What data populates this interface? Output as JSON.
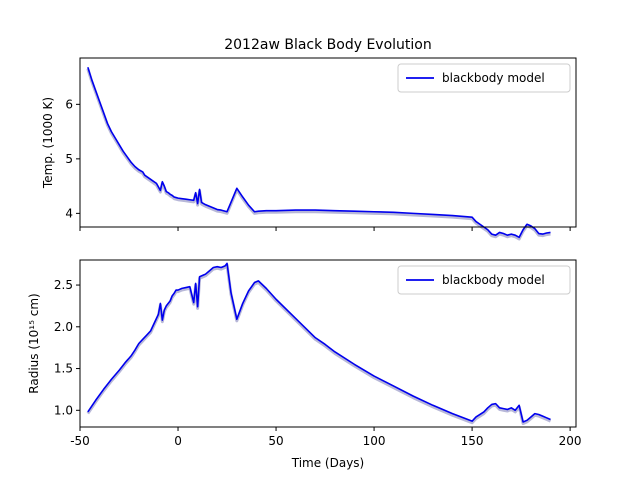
{
  "chart_data": {
    "type": "line",
    "title": "2012aw Black Body Evolution",
    "xlabel": "Time (Days)",
    "xlim": [
      -50,
      203
    ],
    "xticks": [
      -50,
      0,
      50,
      100,
      150,
      200
    ],
    "subplots": [
      {
        "id": "temperature",
        "ylabel": "Temp. (1000 K)",
        "ylim": [
          3.75,
          6.85
        ],
        "yticks": [
          4,
          5,
          6
        ],
        "legend": {
          "position": "top-right",
          "label": "blackbody model"
        },
        "series": [
          {
            "name": "blackbody model",
            "color": "#0000ee",
            "x": [
              -46,
              -44,
              -42,
              -40,
              -38,
              -36,
              -34,
              -32,
              -30,
              -28,
              -26,
              -24,
              -22,
              -20,
              -18,
              -17,
              -15,
              -13,
              -11,
              -9,
              -8,
              -7,
              -6,
              -5,
              -4,
              -3,
              -2,
              -1,
              0,
              2,
              4,
              6,
              8,
              9,
              10,
              11,
              12,
              13,
              14,
              16,
              18,
              20,
              22,
              25,
              27,
              30,
              33,
              36,
              39,
              41,
              45,
              50,
              60,
              70,
              80,
              90,
              100,
              110,
              120,
              130,
              140,
              150,
              152,
              154,
              156,
              158,
              160,
              162,
              164,
              166,
              168,
              170,
              172,
              174,
              176,
              178,
              180,
              182,
              184,
              186,
              188,
              190
            ],
            "y": [
              6.68,
              6.45,
              6.25,
              6.05,
              5.85,
              5.65,
              5.5,
              5.38,
              5.26,
              5.14,
              5.04,
              4.94,
              4.86,
              4.8,
              4.76,
              4.7,
              4.65,
              4.6,
              4.55,
              4.42,
              4.58,
              4.5,
              4.4,
              4.38,
              4.35,
              4.33,
              4.3,
              4.29,
              4.28,
              4.27,
              4.26,
              4.25,
              4.24,
              4.38,
              4.18,
              4.44,
              4.2,
              4.18,
              4.16,
              4.13,
              4.1,
              4.07,
              4.06,
              4.03,
              4.2,
              4.46,
              4.3,
              4.15,
              4.03,
              4.04,
              4.05,
              4.05,
              4.06,
              4.06,
              4.05,
              4.04,
              4.03,
              4.02,
              4.0,
              3.98,
              3.96,
              3.93,
              3.85,
              3.8,
              3.75,
              3.7,
              3.62,
              3.6,
              3.65,
              3.63,
              3.6,
              3.62,
              3.6,
              3.56,
              3.7,
              3.8,
              3.77,
              3.72,
              3.63,
              3.62,
              3.64,
              3.65
            ]
          }
        ]
      },
      {
        "id": "radius",
        "ylabel": "Radius (10¹⁵ cm)",
        "ylim": [
          0.8,
          2.8
        ],
        "yticks": [
          1.0,
          1.5,
          2.0,
          2.5
        ],
        "legend": {
          "position": "top-right",
          "label": "blackbody model"
        },
        "series": [
          {
            "name": "blackbody model",
            "color": "#0000ee",
            "x": [
              -46,
              -42,
              -38,
              -34,
              -30,
              -27,
              -24,
              -22,
              -20,
              -18,
              -16,
              -14,
              -12,
              -10,
              -9,
              -8,
              -7,
              -6,
              -5,
              -4,
              -3,
              -2,
              -1,
              0,
              2,
              4,
              6,
              8,
              9,
              10,
              11,
              12,
              13,
              14,
              16,
              18,
              20,
              22,
              24,
              25,
              27,
              30,
              33,
              36,
              39,
              41,
              45,
              50,
              60,
              70,
              75,
              80,
              90,
              100,
              110,
              120,
              130,
              140,
              150,
              152,
              154,
              156,
              158,
              160,
              162,
              164,
              166,
              168,
              170,
              172,
              174,
              176,
              178,
              180,
              182,
              184,
              186,
              188,
              190
            ],
            "y": [
              0.98,
              1.12,
              1.25,
              1.37,
              1.48,
              1.57,
              1.65,
              1.72,
              1.8,
              1.85,
              1.9,
              1.95,
              2.05,
              2.15,
              2.28,
              2.08,
              2.2,
              2.25,
              2.28,
              2.31,
              2.37,
              2.4,
              2.44,
              2.44,
              2.46,
              2.47,
              2.48,
              2.29,
              2.52,
              2.24,
              2.6,
              2.61,
              2.62,
              2.63,
              2.67,
              2.71,
              2.72,
              2.71,
              2.73,
              2.76,
              2.41,
              2.09,
              2.28,
              2.43,
              2.53,
              2.55,
              2.46,
              2.33,
              2.1,
              1.87,
              1.79,
              1.7,
              1.55,
              1.41,
              1.29,
              1.17,
              1.06,
              0.96,
              0.87,
              0.92,
              0.95,
              0.98,
              1.03,
              1.07,
              1.08,
              1.03,
              1.02,
              1.01,
              1.03,
              1.0,
              1.06,
              0.86,
              0.88,
              0.92,
              0.96,
              0.95,
              0.93,
              0.91,
              0.89
            ]
          }
        ]
      }
    ]
  }
}
